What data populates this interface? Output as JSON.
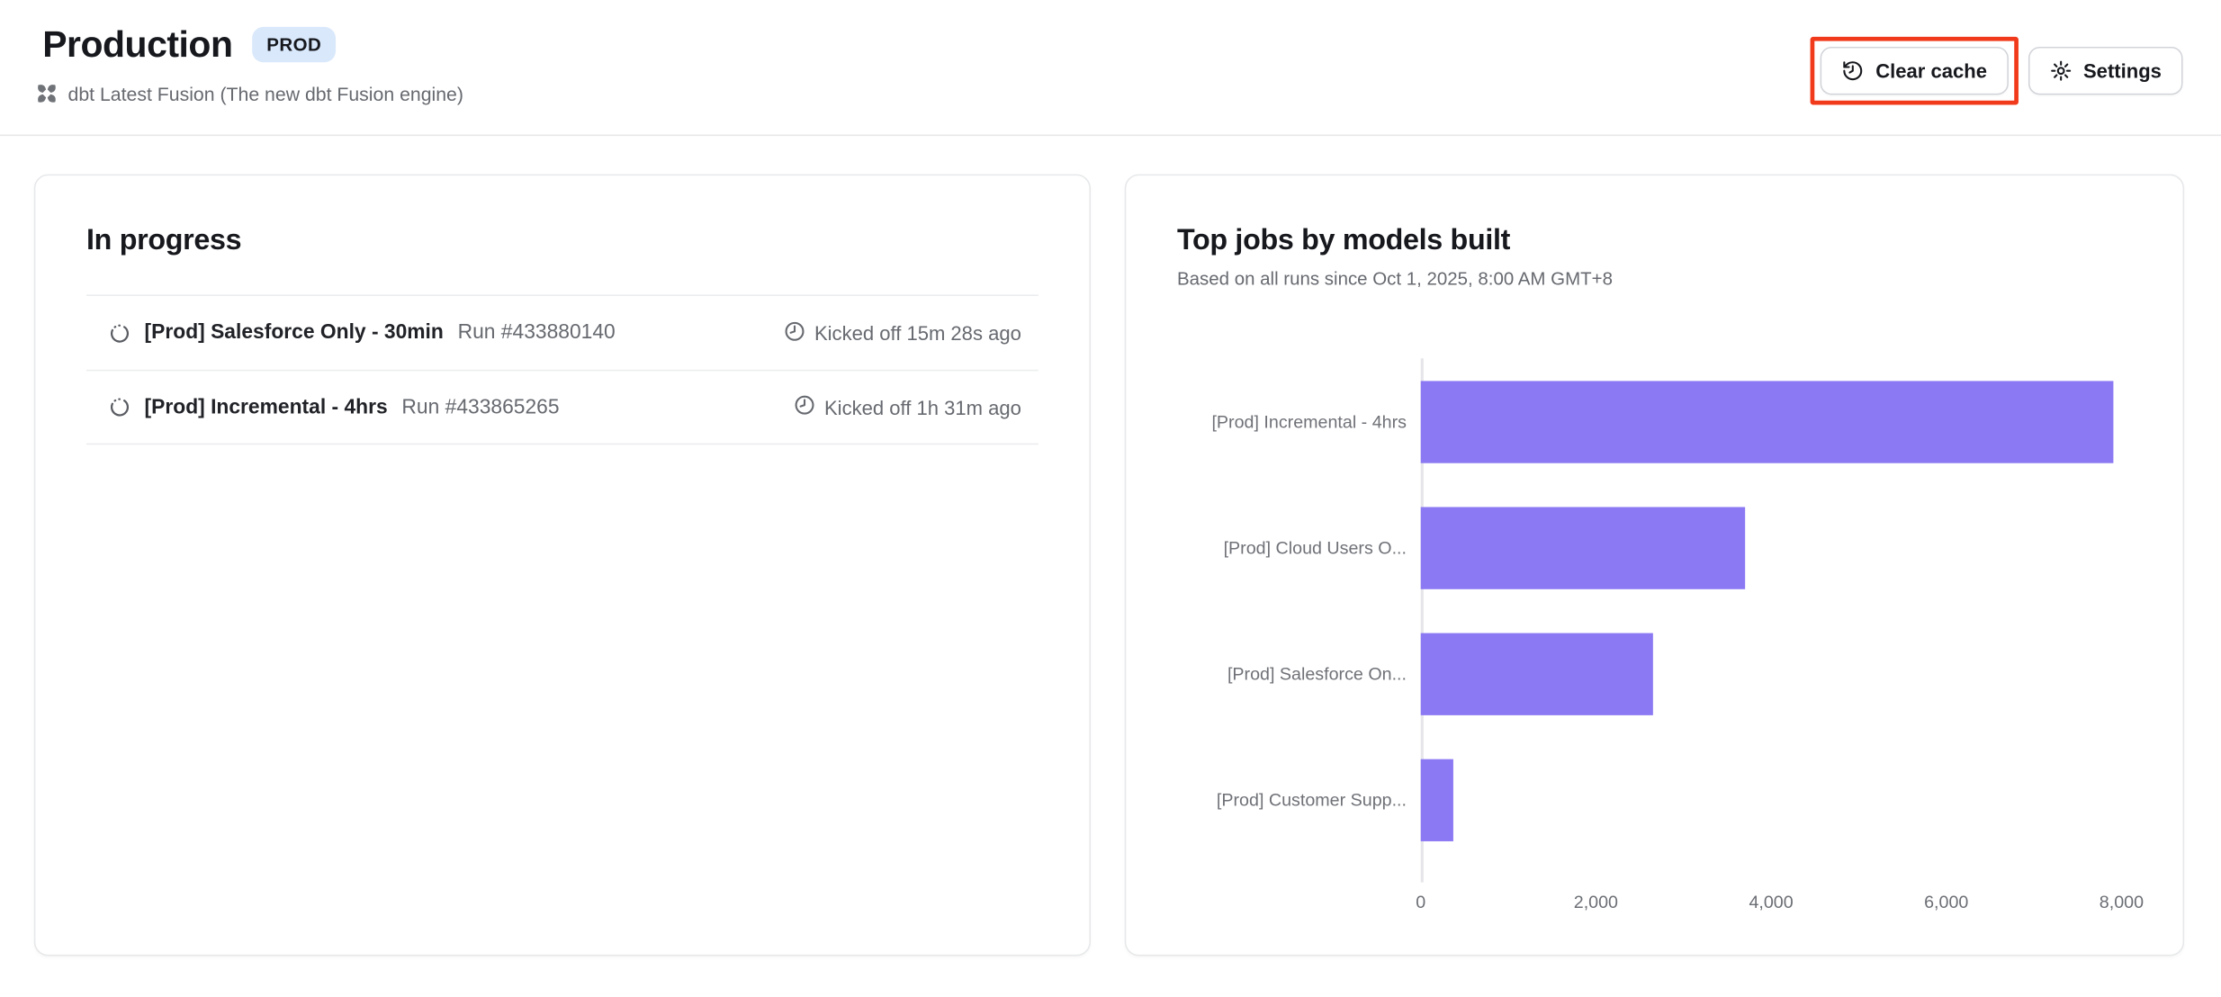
{
  "header": {
    "title": "Production",
    "badge": "PROD",
    "subtitle": "dbt Latest Fusion (The new dbt Fusion engine)",
    "clear_cache_label": "Clear cache",
    "settings_label": "Settings"
  },
  "in_progress": {
    "title": "In progress",
    "runs": [
      {
        "name": "[Prod] Salesforce Only - 30min",
        "run_id": "Run #433880140",
        "kicked_off": "Kicked off 15m 28s ago"
      },
      {
        "name": "[Prod] Incremental - 4hrs",
        "run_id": "Run #433865265",
        "kicked_off": "Kicked off 1h 31m ago"
      }
    ]
  },
  "chart_card": {
    "title": "Top jobs by models built",
    "subtitle": "Based on all runs since Oct 1, 2025, 8:00 AM GMT+8"
  },
  "chart_data": {
    "type": "bar",
    "orientation": "horizontal",
    "title": "Top jobs by models built",
    "xlabel": "",
    "ylabel": "",
    "categories": [
      "[Prod] Incremental - 4hrs",
      "[Prod] Cloud Users O...",
      "[Prod] Salesforce On...",
      "[Prod] Customer Supp..."
    ],
    "values": [
      7900,
      3700,
      2650,
      380
    ],
    "xlim": [
      0,
      8150
    ],
    "ticks": [
      {
        "value": 0,
        "label": "0"
      },
      {
        "value": 2000,
        "label": "2,000"
      },
      {
        "value": 4000,
        "label": "4,000"
      },
      {
        "value": 6000,
        "label": "6,000"
      },
      {
        "value": 8000,
        "label": "8,000"
      }
    ],
    "grid": false,
    "legend": false,
    "bar_color": "#8b79f3"
  },
  "colors": {
    "accent_purple": "#8b79f3",
    "badge_bg": "#d9e8fb",
    "annotation_red": "#f13a1b",
    "text_dark": "#16181d",
    "text_gray": "#66696f",
    "border_gray": "#e7e8ea"
  }
}
